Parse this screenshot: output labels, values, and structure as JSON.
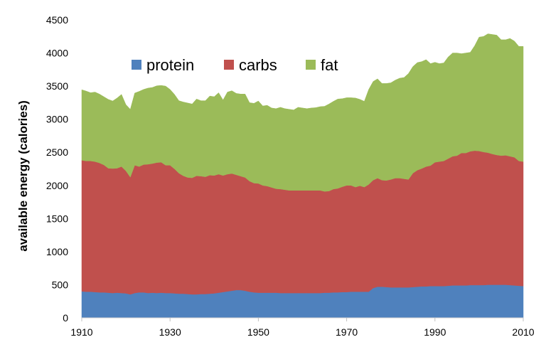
{
  "chart_data": {
    "type": "area",
    "title": "",
    "xlabel": "",
    "ylabel": "available energy (calories)",
    "xlim": [
      1910,
      2010
    ],
    "ylim": [
      0,
      4500
    ],
    "xticks": [
      1910,
      1930,
      1950,
      1970,
      1990,
      2010
    ],
    "yticks": [
      0,
      500,
      1000,
      1500,
      2000,
      2500,
      3000,
      3500,
      4000,
      4500
    ],
    "stacked": true,
    "legend_position": "top-left inside",
    "x": [
      1910,
      1911,
      1912,
      1913,
      1914,
      1915,
      1916,
      1917,
      1918,
      1919,
      1920,
      1921,
      1922,
      1923,
      1924,
      1925,
      1926,
      1927,
      1928,
      1929,
      1930,
      1931,
      1932,
      1933,
      1934,
      1935,
      1936,
      1937,
      1938,
      1939,
      1940,
      1941,
      1942,
      1943,
      1944,
      1945,
      1946,
      1947,
      1948,
      1949,
      1950,
      1951,
      1952,
      1953,
      1954,
      1955,
      1956,
      1957,
      1958,
      1959,
      1960,
      1961,
      1962,
      1963,
      1964,
      1965,
      1966,
      1967,
      1968,
      1969,
      1970,
      1971,
      1972,
      1973,
      1974,
      1975,
      1976,
      1977,
      1978,
      1979,
      1980,
      1981,
      1982,
      1983,
      1984,
      1985,
      1986,
      1987,
      1988,
      1989,
      1990,
      1991,
      1992,
      1993,
      1994,
      1995,
      1996,
      1997,
      1998,
      1999,
      2000,
      2001,
      2002,
      2003,
      2004,
      2005,
      2006,
      2007,
      2008,
      2009,
      2010
    ],
    "series": [
      {
        "name": "protein",
        "color": "#4f81bd",
        "values": [
          400,
          395,
          395,
          390,
          385,
          385,
          380,
          375,
          380,
          375,
          370,
          355,
          375,
          385,
          385,
          375,
          380,
          375,
          380,
          375,
          375,
          370,
          365,
          365,
          360,
          355,
          355,
          360,
          360,
          365,
          370,
          380,
          390,
          400,
          410,
          420,
          420,
          410,
          395,
          385,
          380,
          380,
          380,
          380,
          380,
          375,
          375,
          375,
          375,
          375,
          375,
          375,
          375,
          375,
          375,
          380,
          380,
          385,
          385,
          390,
          390,
          395,
          395,
          395,
          395,
          395,
          450,
          470,
          470,
          465,
          460,
          460,
          460,
          460,
          460,
          465,
          470,
          475,
          475,
          480,
          480,
          480,
          480,
          485,
          490,
          490,
          490,
          490,
          495,
          495,
          495,
          495,
          500,
          500,
          500,
          500,
          500,
          495,
          490,
          485,
          480
        ]
      },
      {
        "name": "carbs",
        "color": "#c0504d",
        "values": [
          1980,
          1975,
          1975,
          1970,
          1955,
          1925,
          1880,
          1880,
          1880,
          1910,
          1850,
          1770,
          1930,
          1900,
          1930,
          1945,
          1950,
          1970,
          1970,
          1930,
          1930,
          1880,
          1820,
          1780,
          1760,
          1760,
          1790,
          1780,
          1770,
          1790,
          1780,
          1790,
          1760,
          1770,
          1770,
          1740,
          1720,
          1710,
          1670,
          1650,
          1650,
          1620,
          1610,
          1590,
          1570,
          1570,
          1560,
          1550,
          1550,
          1550,
          1550,
          1550,
          1550,
          1550,
          1550,
          1530,
          1535,
          1560,
          1570,
          1590,
          1610,
          1605,
          1580,
          1600,
          1580,
          1620,
          1630,
          1640,
          1610,
          1610,
          1630,
          1650,
          1650,
          1640,
          1630,
          1720,
          1760,
          1780,
          1810,
          1820,
          1870,
          1880,
          1890,
          1920,
          1950,
          1960,
          2000,
          2000,
          2020,
          2030,
          2025,
          2010,
          1995,
          1975,
          1960,
          1950,
          1955,
          1945,
          1935,
          1885,
          1880
        ]
      },
      {
        "name": "fat",
        "color": "#9bbb59",
        "values": [
          1065,
          1055,
          1030,
          1050,
          1040,
          1030,
          1040,
          1020,
          1060,
          1090,
          1000,
          1025,
          1090,
          1135,
          1135,
          1150,
          1150,
          1160,
          1160,
          1195,
          1145,
          1125,
          1095,
          1115,
          1125,
          1115,
          1160,
          1140,
          1150,
          1195,
          1190,
          1230,
          1140,
          1240,
          1250,
          1230,
          1240,
          1260,
          1185,
          1205,
          1245,
          1200,
          1220,
          1200,
          1210,
          1235,
          1225,
          1225,
          1215,
          1255,
          1245,
          1235,
          1245,
          1250,
          1265,
          1285,
          1315,
          1325,
          1350,
          1330,
          1325,
          1325,
          1345,
          1305,
          1295,
          1435,
          1490,
          1500,
          1460,
          1465,
          1460,
          1480,
          1510,
          1530,
          1600,
          1610,
          1625,
          1615,
          1615,
          1540,
          1510,
          1480,
          1480,
          1535,
          1560,
          1550,
          1500,
          1510,
          1495,
          1585,
          1720,
          1745,
          1795,
          1805,
          1810,
          1750,
          1745,
          1780,
          1755,
          1730,
          1740
        ]
      }
    ]
  }
}
